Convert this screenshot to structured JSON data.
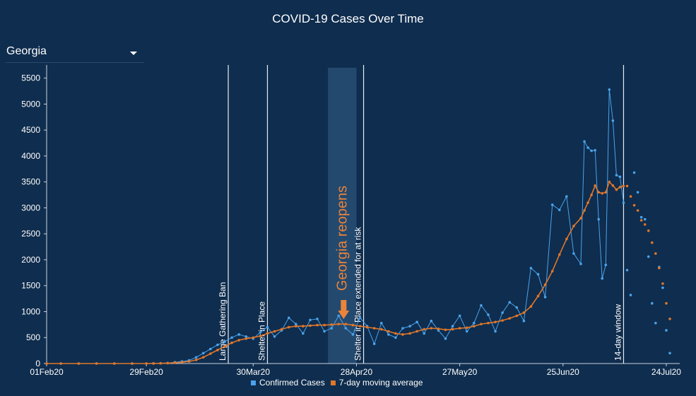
{
  "chart_title": "COVID-19 Cases Over Time",
  "region_select": {
    "selected": "Georgia"
  },
  "colors": {
    "background": "#0f2d4e",
    "confirmed": "#4aa3ec",
    "moving_avg": "#e0772a",
    "event_line": "#e6ecf2",
    "annotation": "#e9843a",
    "highlight_band": "#24496f"
  },
  "chart_data": {
    "type": "line",
    "title": "COVID-19 Cases Over Time",
    "x_type": "date",
    "x_ticks": [
      "01Feb20",
      "29Feb20",
      "30Mar20",
      "28Apr20",
      "27May20",
      "25Jun20",
      "24Jul20"
    ],
    "x_range": [
      "2020-02-01",
      "2020-07-25"
    ],
    "ylim": [
      0,
      5700
    ],
    "y_ticks": [
      0,
      500,
      1000,
      1500,
      2000,
      2500,
      3000,
      3500,
      4000,
      4500,
      5000,
      5500
    ],
    "grid": false,
    "legend": "bottom",
    "series": [
      {
        "name": "Confirmed Cases",
        "points": [
          [
            "2020-02-01",
            0
          ],
          [
            "2020-02-05",
            0
          ],
          [
            "2020-02-10",
            0
          ],
          [
            "2020-02-15",
            0
          ],
          [
            "2020-02-20",
            0
          ],
          [
            "2020-02-25",
            0
          ],
          [
            "2020-02-29",
            0
          ],
          [
            "2020-03-02",
            2
          ],
          [
            "2020-03-04",
            5
          ],
          [
            "2020-03-06",
            10
          ],
          [
            "2020-03-08",
            25
          ],
          [
            "2020-03-10",
            40
          ],
          [
            "2020-03-12",
            60
          ],
          [
            "2020-03-14",
            120
          ],
          [
            "2020-03-16",
            200
          ],
          [
            "2020-03-18",
            280
          ],
          [
            "2020-03-20",
            360
          ],
          [
            "2020-03-22",
            420
          ],
          [
            "2020-03-24",
            500
          ],
          [
            "2020-03-26",
            560
          ],
          [
            "2020-03-28",
            520
          ],
          [
            "2020-03-30",
            480
          ],
          [
            "2020-04-01",
            600
          ],
          [
            "2020-04-03",
            700
          ],
          [
            "2020-04-05",
            520
          ],
          [
            "2020-04-07",
            640
          ],
          [
            "2020-04-09",
            880
          ],
          [
            "2020-04-11",
            760
          ],
          [
            "2020-04-13",
            580
          ],
          [
            "2020-04-15",
            840
          ],
          [
            "2020-04-17",
            860
          ],
          [
            "2020-04-19",
            620
          ],
          [
            "2020-04-21",
            680
          ],
          [
            "2020-04-23",
            920
          ],
          [
            "2020-04-25",
            680
          ],
          [
            "2020-04-27",
            560
          ],
          [
            "2020-04-29",
            880
          ],
          [
            "2020-05-01",
            720
          ],
          [
            "2020-05-03",
            380
          ],
          [
            "2020-05-05",
            780
          ],
          [
            "2020-05-07",
            560
          ],
          [
            "2020-05-09",
            500
          ],
          [
            "2020-05-11",
            680
          ],
          [
            "2020-05-13",
            720
          ],
          [
            "2020-05-15",
            800
          ],
          [
            "2020-05-17",
            580
          ],
          [
            "2020-05-19",
            820
          ],
          [
            "2020-05-21",
            640
          ],
          [
            "2020-05-23",
            480
          ],
          [
            "2020-05-25",
            720
          ],
          [
            "2020-05-27",
            920
          ],
          [
            "2020-05-29",
            620
          ],
          [
            "2020-05-31",
            780
          ],
          [
            "2020-06-02",
            1120
          ],
          [
            "2020-06-04",
            940
          ],
          [
            "2020-06-06",
            620
          ],
          [
            "2020-06-08",
            980
          ],
          [
            "2020-06-10",
            1180
          ],
          [
            "2020-06-12",
            1080
          ],
          [
            "2020-06-14",
            820
          ],
          [
            "2020-06-16",
            1840
          ],
          [
            "2020-06-18",
            1720
          ],
          [
            "2020-06-20",
            1280
          ],
          [
            "2020-06-22",
            3060
          ],
          [
            "2020-06-24",
            2960
          ],
          [
            "2020-06-26",
            3220
          ],
          [
            "2020-06-28",
            2120
          ],
          [
            "2020-06-30",
            1920
          ],
          [
            "2020-07-01",
            4280
          ],
          [
            "2020-07-02",
            4160
          ],
          [
            "2020-07-03",
            4100
          ],
          [
            "2020-07-04",
            4110
          ],
          [
            "2020-07-05",
            2780
          ],
          [
            "2020-07-06",
            1640
          ],
          [
            "2020-07-07",
            1900
          ],
          [
            "2020-07-08",
            5280
          ],
          [
            "2020-07-09",
            4680
          ],
          [
            "2020-07-10",
            3630
          ],
          [
            "2020-07-11",
            3600
          ],
          [
            "2020-07-12",
            3100
          ]
        ]
      },
      {
        "name": "7-day moving average",
        "points": [
          [
            "2020-02-01",
            0
          ],
          [
            "2020-02-05",
            0
          ],
          [
            "2020-02-10",
            0
          ],
          [
            "2020-02-15",
            0
          ],
          [
            "2020-02-20",
            0
          ],
          [
            "2020-02-25",
            0
          ],
          [
            "2020-02-29",
            0
          ],
          [
            "2020-03-02",
            2
          ],
          [
            "2020-03-04",
            4
          ],
          [
            "2020-03-06",
            8
          ],
          [
            "2020-03-08",
            15
          ],
          [
            "2020-03-10",
            25
          ],
          [
            "2020-03-12",
            40
          ],
          [
            "2020-03-14",
            70
          ],
          [
            "2020-03-16",
            120
          ],
          [
            "2020-03-18",
            190
          ],
          [
            "2020-03-20",
            260
          ],
          [
            "2020-03-22",
            330
          ],
          [
            "2020-03-24",
            400
          ],
          [
            "2020-03-26",
            450
          ],
          [
            "2020-03-28",
            480
          ],
          [
            "2020-03-30",
            500
          ],
          [
            "2020-04-01",
            530
          ],
          [
            "2020-04-03",
            580
          ],
          [
            "2020-04-05",
            620
          ],
          [
            "2020-04-07",
            660
          ],
          [
            "2020-04-09",
            700
          ],
          [
            "2020-04-11",
            720
          ],
          [
            "2020-04-13",
            720
          ],
          [
            "2020-04-15",
            730
          ],
          [
            "2020-04-17",
            740
          ],
          [
            "2020-04-19",
            740
          ],
          [
            "2020-04-21",
            750
          ],
          [
            "2020-04-23",
            760
          ],
          [
            "2020-04-25",
            760
          ],
          [
            "2020-04-27",
            740
          ],
          [
            "2020-04-29",
            720
          ],
          [
            "2020-05-01",
            700
          ],
          [
            "2020-05-03",
            680
          ],
          [
            "2020-05-05",
            660
          ],
          [
            "2020-05-07",
            620
          ],
          [
            "2020-05-09",
            580
          ],
          [
            "2020-05-11",
            560
          ],
          [
            "2020-05-13",
            580
          ],
          [
            "2020-05-15",
            620
          ],
          [
            "2020-05-17",
            660
          ],
          [
            "2020-05-19",
            680
          ],
          [
            "2020-05-21",
            670
          ],
          [
            "2020-05-23",
            650
          ],
          [
            "2020-05-25",
            660
          ],
          [
            "2020-05-27",
            680
          ],
          [
            "2020-05-29",
            690
          ],
          [
            "2020-05-31",
            720
          ],
          [
            "2020-06-02",
            760
          ],
          [
            "2020-06-04",
            780
          ],
          [
            "2020-06-06",
            800
          ],
          [
            "2020-06-08",
            830
          ],
          [
            "2020-06-10",
            870
          ],
          [
            "2020-06-12",
            920
          ],
          [
            "2020-06-14",
            980
          ],
          [
            "2020-06-16",
            1100
          ],
          [
            "2020-06-18",
            1300
          ],
          [
            "2020-06-20",
            1520
          ],
          [
            "2020-06-22",
            1780
          ],
          [
            "2020-06-24",
            2100
          ],
          [
            "2020-06-26",
            2400
          ],
          [
            "2020-06-28",
            2650
          ],
          [
            "2020-06-30",
            2800
          ],
          [
            "2020-07-01",
            2950
          ],
          [
            "2020-07-02",
            3100
          ],
          [
            "2020-07-03",
            3250
          ],
          [
            "2020-07-04",
            3430
          ],
          [
            "2020-07-05",
            3300
          ],
          [
            "2020-07-06",
            3280
          ],
          [
            "2020-07-07",
            3300
          ],
          [
            "2020-07-08",
            3500
          ],
          [
            "2020-07-09",
            3430
          ],
          [
            "2020-07-10",
            3350
          ],
          [
            "2020-07-11",
            3400
          ],
          [
            "2020-07-12",
            3420
          ]
        ]
      }
    ],
    "projection_confirmed": [
      [
        "2020-07-13",
        1800
      ],
      [
        "2020-07-14",
        1320
      ],
      [
        "2020-07-15",
        3680
      ],
      [
        "2020-07-16",
        3300
      ],
      [
        "2020-07-17",
        2820
      ],
      [
        "2020-07-18",
        2780
      ],
      [
        "2020-07-19",
        2060
      ],
      [
        "2020-07-20",
        1160
      ],
      [
        "2020-07-21",
        780
      ],
      [
        "2020-07-22",
        1860
      ],
      [
        "2020-07-23",
        1460
      ],
      [
        "2020-07-24",
        640
      ],
      [
        "2020-07-25",
        200
      ]
    ],
    "projection_moving_avg": [
      [
        "2020-07-13",
        3420
      ],
      [
        "2020-07-14",
        3220
      ],
      [
        "2020-07-15",
        3050
      ],
      [
        "2020-07-16",
        2950
      ],
      [
        "2020-07-17",
        2760
      ],
      [
        "2020-07-18",
        2680
      ],
      [
        "2020-07-19",
        2560
      ],
      [
        "2020-07-20",
        2330
      ],
      [
        "2020-07-21",
        2120
      ],
      [
        "2020-07-22",
        1840
      ],
      [
        "2020-07-23",
        1540
      ],
      [
        "2020-07-24",
        1160
      ],
      [
        "2020-07-25",
        860
      ]
    ],
    "events": [
      {
        "date": "2020-03-23",
        "label": "Large Gathering Ban"
      },
      {
        "date": "2020-04-03",
        "label": "Shelter in Place"
      },
      {
        "date": "2020-04-30",
        "label": "Shelter in Place extended for at risk"
      },
      {
        "date": "2020-07-12",
        "label": "14-day window"
      }
    ],
    "highlight": {
      "start": "2020-04-20",
      "end": "2020-04-28",
      "label": "Georgia reopens"
    }
  }
}
